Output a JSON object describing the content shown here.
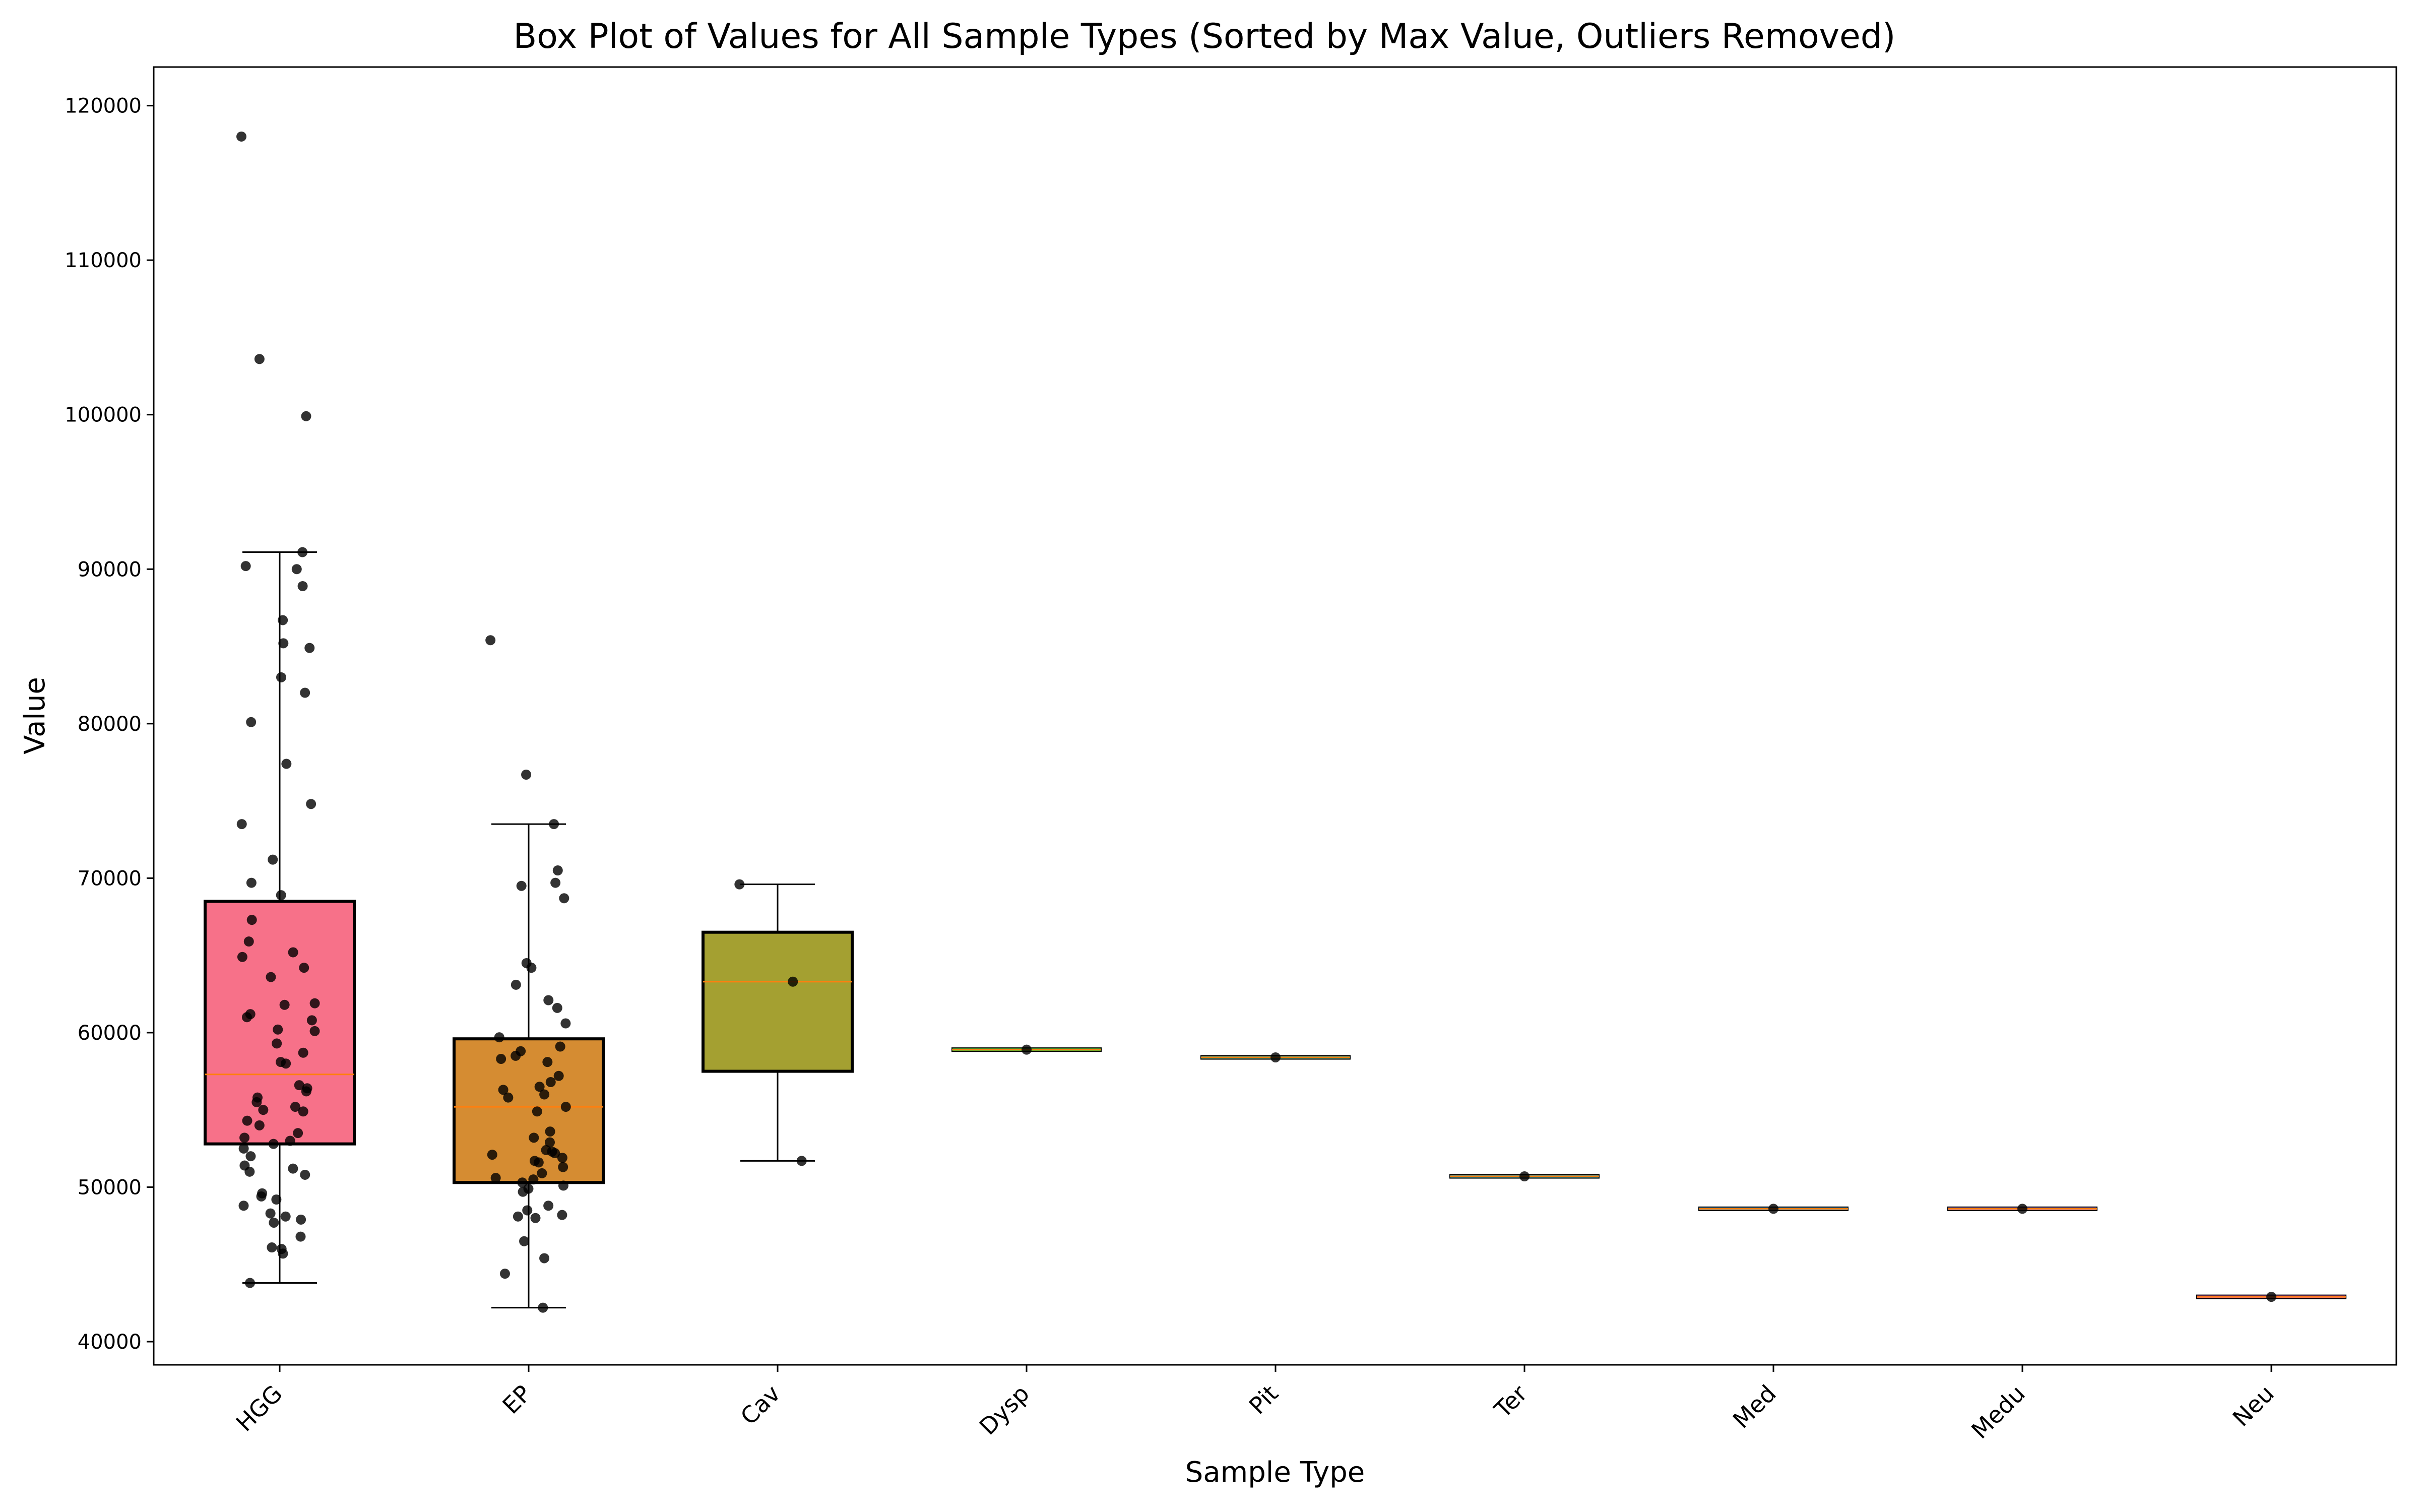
{
  "chart_data": {
    "type": "box",
    "title": "Box Plot of Values for All Sample Types (Sorted by Max Value, Outliers Removed)",
    "xlabel": "Sample Type",
    "ylabel": "Value",
    "ylim": [
      38500,
      122500
    ],
    "yticks": [
      40000,
      50000,
      60000,
      70000,
      80000,
      90000,
      100000,
      110000,
      120000
    ],
    "categories": [
      "HGG",
      "EP",
      "Cav",
      "Dysp",
      "Pit",
      "Ter",
      "Med",
      "Medu",
      "Neu"
    ],
    "boxes": [
      {
        "name": "HGG",
        "color": "#f77189",
        "whisker_low": 43800,
        "q1": 52800,
        "median": 57300,
        "q3": 68500,
        "whisker_high": 91100
      },
      {
        "name": "EP",
        "color": "#d58c32",
        "whisker_low": 42200,
        "q1": 50300,
        "median": 55200,
        "q3": 59600,
        "whisker_high": 73500
      },
      {
        "name": "Cav",
        "color": "#a4a031",
        "whisker_low": 51700,
        "q1": 57500,
        "median": 63300,
        "q3": 66500,
        "whisker_high": 69600
      },
      {
        "name": "Dysp",
        "color": "#50b131",
        "whisker_low": 58900,
        "q1": 58900,
        "median": 58900,
        "q3": 58900,
        "whisker_high": 58900
      },
      {
        "name": "Pit",
        "color": "#34ae91",
        "whisker_low": 58400,
        "q1": 58400,
        "median": 58400,
        "q3": 58400,
        "whisker_high": 58400
      },
      {
        "name": "Ter",
        "color": "#37abb5",
        "whisker_low": 50700,
        "q1": 50700,
        "median": 50700,
        "q3": 50700,
        "whisker_high": 50700
      },
      {
        "name": "Med",
        "color": "#3ba3ec",
        "whisker_low": 48600,
        "q1": 48600,
        "median": 48600,
        "q3": 48600,
        "whisker_high": 48600
      },
      {
        "name": "Medu",
        "color": "#bb83f4",
        "whisker_low": 48600,
        "q1": 48600,
        "median": 48600,
        "q3": 48600,
        "whisker_high": 48600
      },
      {
        "name": "Neu",
        "color": "#f564d4",
        "whisker_low": 42900,
        "q1": 42900,
        "median": 42900,
        "q3": 42900,
        "whisker_high": 42900
      }
    ],
    "points": [
      {
        "category": "HGG",
        "values": [
          118000,
          103600,
          99900,
          91100,
          90200,
          90000,
          88900,
          86700,
          85200,
          84900,
          83000,
          82000,
          80100,
          77400,
          74800,
          73500,
          71200,
          69700,
          68900,
          67300,
          65900,
          65200,
          64900,
          64200,
          63600,
          61900,
          61800,
          61200,
          61000,
          60800,
          60200,
          60100,
          59300,
          58700,
          58100,
          58000,
          56600,
          56400,
          56200,
          55800,
          55500,
          55200,
          55000,
          54900,
          54300,
          54000,
          53500,
          53200,
          53000,
          52800,
          52500,
          52000,
          51400,
          51200,
          51000,
          50800,
          49600,
          49400,
          49200,
          48800,
          48300,
          48100,
          47900,
          47700,
          46800,
          46100,
          46000,
          45700,
          43800
        ]
      },
      {
        "category": "EP",
        "values": [
          85400,
          76700,
          73500,
          70500,
          69700,
          69500,
          68700,
          64500,
          64200,
          63100,
          62100,
          61600,
          60600,
          59700,
          59100,
          58800,
          58500,
          58300,
          58100,
          57200,
          56800,
          56500,
          56300,
          56000,
          55800,
          55200,
          54900,
          53600,
          53200,
          52900,
          52400,
          52300,
          52200,
          52100,
          51900,
          51700,
          51600,
          51300,
          50900,
          50600,
          50500,
          50300,
          50100,
          49900,
          49700,
          48800,
          48500,
          48200,
          48100,
          48000,
          46500,
          45400,
          44400,
          42200
        ]
      },
      {
        "category": "Cav",
        "values": [
          69600,
          63300,
          51700
        ]
      },
      {
        "category": "Dysp",
        "values": [
          58900
        ]
      },
      {
        "category": "Pit",
        "values": [
          58400
        ]
      },
      {
        "category": "Ter",
        "values": [
          50700
        ]
      },
      {
        "category": "Med",
        "values": [
          48600
        ]
      },
      {
        "category": "Medu",
        "values": [
          48600
        ]
      },
      {
        "category": "Neu",
        "values": [
          42900
        ]
      }
    ],
    "median_color": "#ff7f0e",
    "point_color": "#000000",
    "grid": false,
    "legend": "none"
  }
}
